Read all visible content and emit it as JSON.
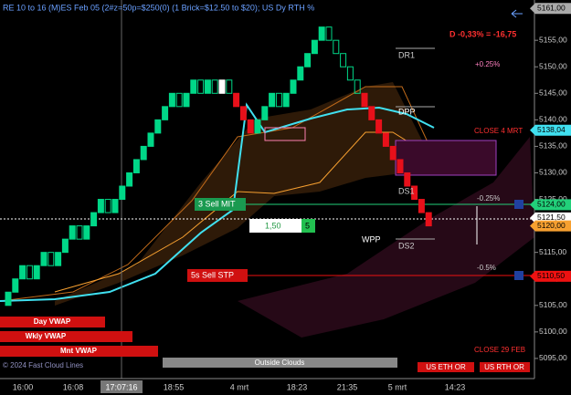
{
  "header": {
    "title": "RE 10 to 16 (M)ES Feb 05 (2#z=50p=$250(0) (1 Brick=$12.50 to $20); US Dy RTH %",
    "daily_change": "D -0,33% = -16,75"
  },
  "price_axis": {
    "ylim": [
      5091.2,
      5162.6
    ],
    "ticks": [
      {
        "value": 5095,
        "label": "5095,00"
      },
      {
        "value": 5100,
        "label": "5100,00"
      },
      {
        "value": 5105,
        "label": "5105,00"
      },
      {
        "value": 5110,
        "label": "5110,00"
      },
      {
        "value": 5115,
        "label": "5115,00"
      },
      {
        "value": 5120,
        "label": "5120,00"
      },
      {
        "value": 5125,
        "label": "5125,00"
      },
      {
        "value": 5130,
        "label": "5130,00"
      },
      {
        "value": 5135,
        "label": "5135,00"
      },
      {
        "value": 5140,
        "label": "5140,00"
      },
      {
        "value": 5145,
        "label": "5145,00"
      },
      {
        "value": 5150,
        "label": "5150,00"
      },
      {
        "value": 5155,
        "label": "5155,00"
      }
    ]
  },
  "time_axis": {
    "labels": [
      "16:00",
      "16:08",
      "17:07:16",
      "18:55",
      "4 mrt",
      "18:23",
      "21:35",
      "5 mrt",
      "14:23"
    ]
  },
  "price_tags": [
    {
      "value": 5161,
      "label": "5161,00",
      "color": "#aaaaaa"
    },
    {
      "value": 5138.04,
      "label": "5138,04",
      "color": "#40e0f0"
    },
    {
      "value": 5124,
      "label": "5124,00",
      "color": "#22d07a"
    },
    {
      "value": 5121.5,
      "label": "5121,50",
      "color": "#ffffff"
    },
    {
      "value": 5120,
      "label": "5120,00",
      "color": "#f7a030"
    },
    {
      "value": 5110.5,
      "label": "5110,50",
      "color": "#ee1111"
    }
  ],
  "brick_colors": {
    "up": "#00d888",
    "down": "#e8101a",
    "pullback": "#00d888",
    "reversal": "#ffffff"
  },
  "bricks": [
    [
      5105,
      5107.5,
      "up"
    ],
    [
      5107.5,
      5110,
      "up"
    ],
    [
      5110,
      5112.5,
      "up"
    ],
    [
      5112.5,
      5110,
      "pullback"
    ],
    [
      5110,
      5112.5,
      "up"
    ],
    [
      5112.5,
      5115,
      "up"
    ],
    [
      5115,
      5112.5,
      "pullback"
    ],
    [
      5112.5,
      5115,
      "up"
    ],
    [
      5115,
      5117.5,
      "up"
    ],
    [
      5117.5,
      5120,
      "up"
    ],
    [
      5120,
      5117.5,
      "pullback"
    ],
    [
      5117.5,
      5120,
      "up"
    ],
    [
      5120,
      5122.5,
      "up"
    ],
    [
      5122.5,
      5125,
      "up"
    ],
    [
      5125,
      5122.5,
      "pullback"
    ],
    [
      5122.5,
      5125,
      "up"
    ],
    [
      5125,
      5127.5,
      "up"
    ],
    [
      5127.5,
      5130,
      "up"
    ],
    [
      5130,
      5132.5,
      "up"
    ],
    [
      5132.5,
      5135,
      "up"
    ],
    [
      5135,
      5137.5,
      "up"
    ],
    [
      5137.5,
      5140,
      "up"
    ],
    [
      5140,
      5142.5,
      "up"
    ],
    [
      5142.5,
      5145,
      "up"
    ],
    [
      5145,
      5142.5,
      "pullback"
    ],
    [
      5142.5,
      5145,
      "up"
    ],
    [
      5145,
      5147.5,
      "up"
    ],
    [
      5147.5,
      5145,
      "pullback"
    ],
    [
      5145,
      5147.5,
      "up"
    ],
    [
      5147.5,
      5145,
      "pullback"
    ],
    [
      5145,
      5147.5,
      "reversal"
    ],
    [
      5147.5,
      5145,
      "pullback"
    ],
    [
      5145,
      5142.5,
      "down"
    ],
    [
      5142.5,
      5140,
      "down"
    ],
    [
      5140,
      5137.5,
      "down"
    ],
    [
      5137.5,
      5140,
      "up"
    ],
    [
      5140,
      5142.5,
      "up"
    ],
    [
      5142.5,
      5145,
      "up"
    ],
    [
      5145,
      5142.5,
      "pullback"
    ],
    [
      5142.5,
      5145,
      "up"
    ],
    [
      5145,
      5147.5,
      "up"
    ],
    [
      5147.5,
      5150,
      "up"
    ],
    [
      5150,
      5152.5,
      "up"
    ],
    [
      5152.5,
      5155,
      "up"
    ],
    [
      5155,
      5157.5,
      "up"
    ],
    [
      5157.5,
      5155,
      "pullback"
    ],
    [
      5155,
      5152.5,
      "pullback"
    ],
    [
      5152.5,
      5150,
      "pullback"
    ],
    [
      5150,
      5147.5,
      "pullback"
    ],
    [
      5147.5,
      5145,
      "pullback"
    ],
    [
      5145,
      5142.5,
      "down"
    ],
    [
      5142.5,
      5140,
      "down"
    ],
    [
      5140,
      5137.5,
      "down"
    ],
    [
      5137.5,
      5135,
      "down"
    ],
    [
      5135,
      5132.5,
      "down"
    ],
    [
      5132.5,
      5130,
      "down"
    ],
    [
      5130,
      5127.5,
      "down"
    ],
    [
      5127.5,
      5125,
      "down"
    ],
    [
      5125,
      5122.5,
      "down"
    ],
    [
      5122.5,
      5120,
      "down"
    ]
  ],
  "annotations": {
    "plus_025": "+0.25%",
    "dr1": "DR1",
    "dpp": "DPP",
    "close_4": "CLOSE 4 MRT",
    "ds1": "DS1",
    "ds2": "DS2",
    "wpp": "WPP",
    "minus_025": "-0.25%",
    "minus_05": "-0.5%",
    "close_29": "CLOSE 29 FEB",
    "outside": "Outside Clouds",
    "copyright": "© 2024 Fast Cloud Lines"
  },
  "orders": {
    "mit": "3 Sell MIT",
    "stp": "5s Sell STP",
    "qty_price": "1,50",
    "qty": "5"
  },
  "vwap_buttons": [
    "Day VWAP",
    "Wkly VWAP",
    "Mnt VWAP"
  ],
  "session_buttons": [
    "US ETH OR",
    "US RTH OR"
  ]
}
